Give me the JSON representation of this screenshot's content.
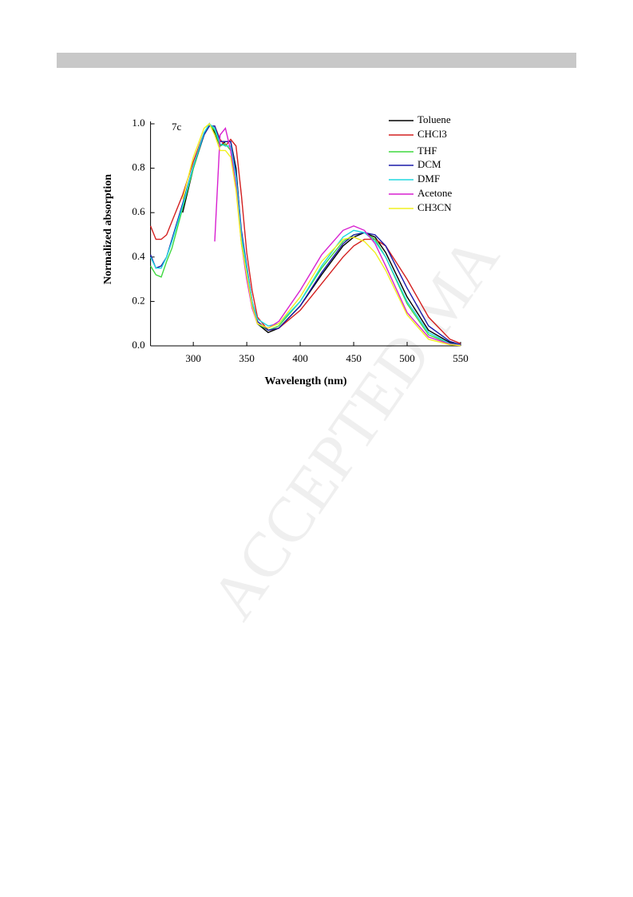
{
  "chart_data": {
    "type": "line",
    "annotation": "7c",
    "watermark": "ACCEPTED MA",
    "x_label": "Wavelength (nm)",
    "y_label": "Normalized absorption",
    "x": [
      260,
      265,
      270,
      275,
      280,
      290,
      300,
      310,
      315,
      320,
      325,
      330,
      335,
      340,
      345,
      350,
      355,
      360,
      370,
      380,
      400,
      420,
      440,
      450,
      460,
      470,
      480,
      500,
      520,
      540,
      550
    ],
    "series": [
      {
        "name": "Toluene",
        "color": "#000000",
        "values": [
          null,
          null,
          null,
          null,
          null,
          0.6,
          0.8,
          0.95,
          1.0,
          0.96,
          0.9,
          0.92,
          0.92,
          0.8,
          0.5,
          0.35,
          0.2,
          0.1,
          0.06,
          0.08,
          0.18,
          0.32,
          0.45,
          0.49,
          0.51,
          0.49,
          0.42,
          0.22,
          0.07,
          0.015,
          0.005
        ]
      },
      {
        "name": "CHCl3",
        "color": "#d42020",
        "values": [
          0.54,
          0.48,
          0.48,
          0.5,
          0.56,
          0.68,
          0.83,
          0.96,
          0.99,
          0.99,
          0.93,
          0.9,
          0.93,
          0.9,
          0.68,
          0.42,
          0.25,
          0.13,
          0.07,
          0.08,
          0.16,
          0.28,
          0.4,
          0.45,
          0.48,
          0.48,
          0.45,
          0.3,
          0.13,
          0.03,
          0.01
        ]
      },
      {
        "name": "THF",
        "color": "#3ed83e",
        "values": [
          0.36,
          0.32,
          0.31,
          0.38,
          0.44,
          0.62,
          0.8,
          0.95,
          1.0,
          0.97,
          0.9,
          0.91,
          0.88,
          0.72,
          0.48,
          0.33,
          0.18,
          0.1,
          0.07,
          0.09,
          0.2,
          0.35,
          0.47,
          0.5,
          0.51,
          0.48,
          0.4,
          0.19,
          0.05,
          0.01,
          0.003
        ]
      },
      {
        "name": "DCM",
        "color": "#1a1aa8",
        "values": [
          0.41,
          0.35,
          0.36,
          0.4,
          0.48,
          0.64,
          0.81,
          0.95,
          0.99,
          0.99,
          0.92,
          0.92,
          0.92,
          0.78,
          0.52,
          0.36,
          0.2,
          0.11,
          0.07,
          0.08,
          0.18,
          0.33,
          0.46,
          0.5,
          0.51,
          0.5,
          0.45,
          0.26,
          0.09,
          0.02,
          0.005
        ]
      },
      {
        "name": "DMF",
        "color": "#20d8e0",
        "values": [
          0.4,
          0.35,
          0.35,
          0.4,
          0.47,
          0.63,
          0.81,
          0.96,
          1.0,
          0.98,
          0.91,
          0.9,
          0.9,
          0.76,
          0.5,
          0.35,
          0.2,
          0.12,
          0.09,
          0.1,
          0.2,
          0.36,
          0.49,
          0.52,
          0.51,
          0.47,
          0.4,
          0.2,
          0.06,
          0.01,
          0.003
        ]
      },
      {
        "name": "Acetone",
        "color": "#d820d0",
        "values": [
          null,
          null,
          null,
          null,
          null,
          null,
          null,
          null,
          null,
          0.47,
          0.95,
          0.98,
          0.88,
          0.72,
          0.46,
          0.3,
          0.17,
          0.1,
          0.08,
          0.11,
          0.25,
          0.41,
          0.52,
          0.54,
          0.52,
          0.46,
          0.36,
          0.15,
          0.04,
          0.008,
          0.002
        ]
      },
      {
        "name": "CH3CN",
        "color": "#f0f020",
        "values": [
          null,
          null,
          null,
          null,
          null,
          0.66,
          0.85,
          0.98,
          1.0,
          0.95,
          0.88,
          0.88,
          0.85,
          0.7,
          0.46,
          0.32,
          0.18,
          0.1,
          0.08,
          0.1,
          0.22,
          0.38,
          0.48,
          0.49,
          0.47,
          0.42,
          0.34,
          0.14,
          0.03,
          0.005,
          0.001
        ]
      }
    ],
    "xlim": [
      260,
      550
    ],
    "ylim": [
      0,
      1.0
    ],
    "xticks": [
      300,
      350,
      400,
      450,
      500,
      550
    ],
    "yticks": [
      {
        "value": 0,
        "label": "0.0"
      },
      0.2,
      0.4,
      0.6,
      0.8,
      {
        "value": 1,
        "label": "1.0"
      }
    ],
    "legend": "upper right",
    "grid": false
  }
}
